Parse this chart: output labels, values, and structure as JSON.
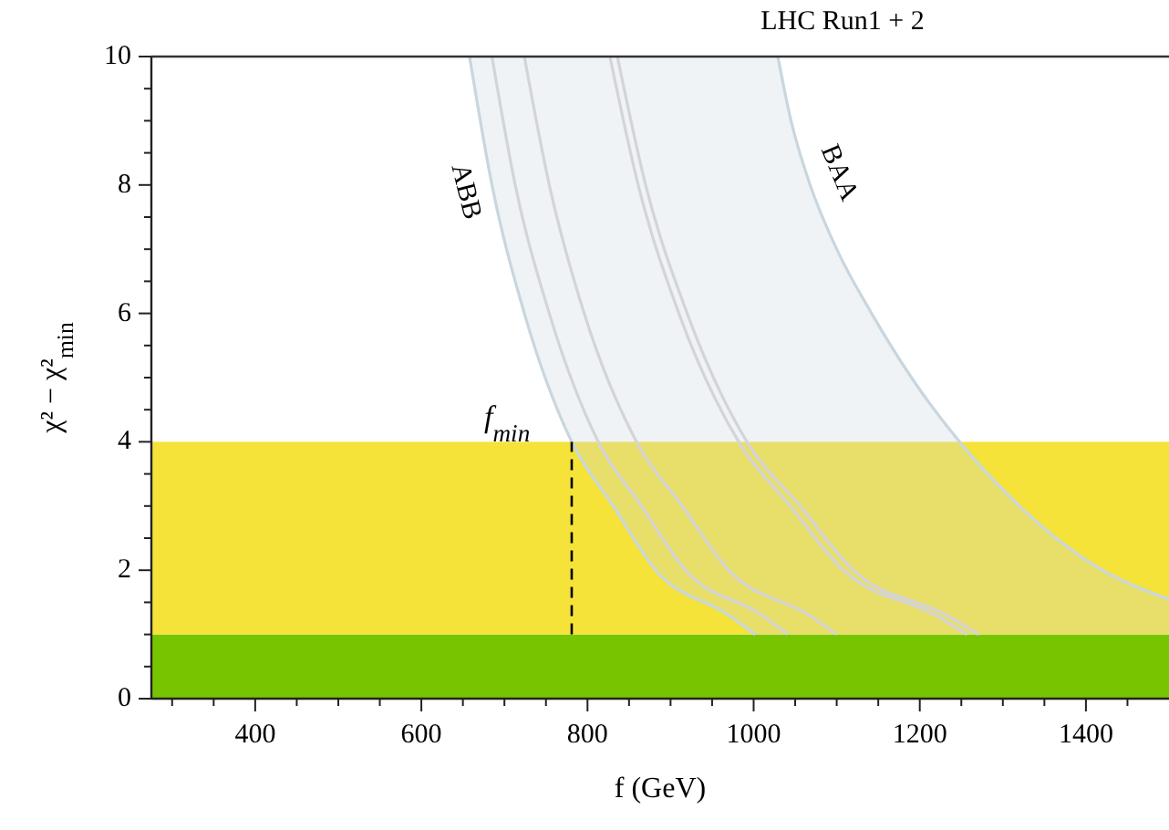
{
  "chart_data": {
    "type": "line",
    "title": "LHC Run1 + 2",
    "xlabel": "f (GeV)",
    "ylabel": "χ² − χ²$_{min}$",
    "xlim": [
      275,
      1500
    ],
    "ylim": [
      0,
      10
    ],
    "xticks": [
      {
        "value": 300,
        "label": null
      },
      {
        "value": 350,
        "label": null
      },
      400,
      {
        "value": 450,
        "label": null
      },
      {
        "value": 500,
        "label": null
      },
      {
        "value": 550,
        "label": null
      },
      600,
      {
        "value": 650,
        "label": null
      },
      {
        "value": 700,
        "label": null
      },
      {
        "value": 750,
        "label": null
      },
      800,
      {
        "value": 850,
        "label": null
      },
      {
        "value": 900,
        "label": null
      },
      {
        "value": 950,
        "label": null
      },
      1000,
      {
        "value": 1050,
        "label": null
      },
      {
        "value": 1100,
        "label": null
      },
      {
        "value": 1150,
        "label": null
      },
      1200,
      {
        "value": 1250,
        "label": null
      },
      {
        "value": 1300,
        "label": null
      },
      {
        "value": 1350,
        "label": null
      },
      1400,
      {
        "value": 1450,
        "label": null
      }
    ],
    "yticks": [
      0,
      {
        "value": 0.5,
        "label": null
      },
      {
        "value": 1,
        "label": null
      },
      {
        "value": 1.5,
        "label": null
      },
      2,
      {
        "value": 2.5,
        "label": null
      },
      {
        "value": 3,
        "label": null
      },
      {
        "value": 3.5,
        "label": null
      },
      4,
      {
        "value": 4.5,
        "label": null
      },
      {
        "value": 5,
        "label": null
      },
      {
        "value": 5.5,
        "label": null
      },
      6,
      {
        "value": 6.5,
        "label": null
      },
      {
        "value": 7,
        "label": null
      },
      {
        "value": 7.5,
        "label": null
      },
      8,
      {
        "value": 8.5,
        "label": null
      },
      {
        "value": 9,
        "label": null
      },
      {
        "value": 9.5,
        "label": null
      },
      10
    ],
    "bands": [
      {
        "axis": "y",
        "from": 0,
        "to": 1,
        "color": "#76c500"
      },
      {
        "axis": "y",
        "from": 1,
        "to": 4,
        "color": "#f5e33a"
      }
    ],
    "ref_lines": [
      {
        "axis": "x",
        "value": 781,
        "label": "f$_{min}$",
        "line_style": "dashed",
        "color": "#000000"
      }
    ],
    "series": [
      {
        "color": "#d4d4d8",
        "x": [
          685,
          713,
          754,
          813,
          865,
          918,
          1010,
          1041
        ],
        "values": [
          10,
          8,
          6,
          4,
          3,
          2,
          1.3,
          1
        ]
      },
      {
        "color": "#d4d4d8",
        "x": [
          724,
          754,
          796,
          859,
          914,
          970,
          1067,
          1100
        ],
        "values": [
          10,
          8,
          6,
          4,
          3,
          2,
          1.3,
          1
        ]
      },
      {
        "color": "#d4d4d8",
        "x": [
          827,
          861,
          910,
          982,
          1044,
          1108,
          1219,
          1257
        ],
        "values": [
          10,
          8,
          6,
          4,
          3,
          2,
          1.3,
          1
        ]
      },
      {
        "color": "#d4d4d8",
        "x": [
          836,
          870,
          920,
          992,
          1056,
          1120,
          1232,
          1271
        ],
        "values": [
          10,
          8,
          6,
          4,
          3,
          2,
          1.3,
          1
        ]
      },
      {
        "name": "ABB",
        "color": "#c9d6df",
        "x": [
          658,
          685,
          724,
          781,
          831,
          882,
          970,
          1002
        ],
        "values": [
          10,
          8,
          6,
          4,
          3,
          2,
          1.3,
          1
        ]
      },
      {
        "name": "BAA",
        "color": "#c9d6df",
        "x": [
          658,
          685,
          724,
          781,
          831,
          882,
          970,
          1002,
          1029,
          1045,
          1068,
          1100,
          1142,
          1190,
          1248,
          1320,
          1420,
          1500
        ],
        "values": [
          null,
          null,
          null,
          null,
          null,
          null,
          null,
          null,
          10,
          9,
          8,
          7,
          6,
          5,
          4,
          3,
          2,
          1.55
        ],
        "lower": [
          10,
          8,
          6,
          4,
          3,
          2,
          1.3,
          1,
          1,
          1,
          1,
          1,
          1,
          1,
          1,
          1,
          1,
          1
        ],
        "upper": [
          10,
          10,
          10,
          10,
          10,
          10,
          10,
          10,
          10,
          9,
          8,
          7,
          6,
          5,
          4,
          3,
          2,
          1.55
        ]
      }
    ],
    "line_style": "solid",
    "marker": "none"
  }
}
